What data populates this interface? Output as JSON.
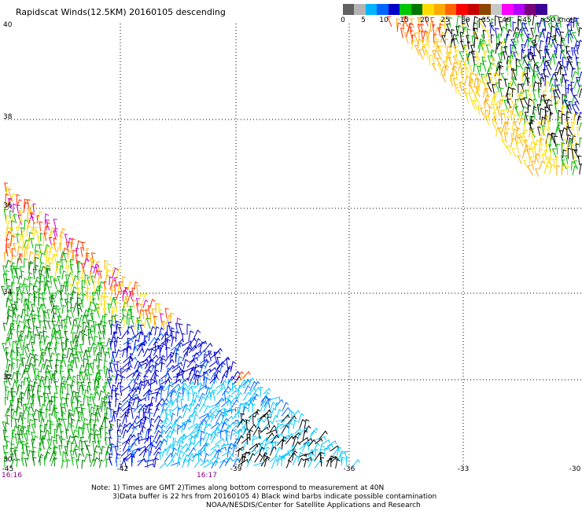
{
  "title": "Rapidscat Winds(12.5KM) 20160105 descending",
  "legend": {
    "colors": [
      "#606060",
      "#b4b4b4",
      "#00b4ff",
      "#0064ff",
      "#0000c8",
      "#00c800",
      "#007800",
      "#ffdc00",
      "#ffaa00",
      "#ff6400",
      "#ff0000",
      "#c80000",
      "#8c4600",
      "#c8c8c8",
      "#ff00ff",
      "#b400ff",
      "#780078",
      "#3c0096"
    ],
    "labels": [
      {
        "text": "0",
        "v": 0
      },
      {
        "text": "5",
        "v": 5
      },
      {
        "text": "10",
        "v": 10
      },
      {
        "text": "15",
        "v": 15
      },
      {
        "text": "20",
        "v": 20
      },
      {
        "text": "25",
        "v": 25
      },
      {
        "text": "30",
        "v": 30
      },
      {
        "text": "35",
        "v": 35
      },
      {
        "text": "40",
        "v": 40
      },
      {
        "text": "45",
        "v": 45
      },
      {
        "text": ">50 knots",
        "v": 50
      }
    ]
  },
  "map": {
    "lat_labels": [
      "40",
      "38",
      "36",
      "34",
      "32",
      "30"
    ],
    "lon_labels": [
      "-45",
      "-42",
      "-39",
      "-36",
      "-33",
      "-30"
    ],
    "times": [
      "16:16",
      "16:17"
    ]
  },
  "notes": {
    "line1": "Note: 1) Times are GMT 2)Times along bottom correspond to measurement at 40N",
    "line2": "3)Data buffer is 22 hrs from 20160105 4) Black wind barbs indicate possible contamination",
    "line3": "NOAA/NESDIS/Center for Satellite Applications and Research"
  }
}
